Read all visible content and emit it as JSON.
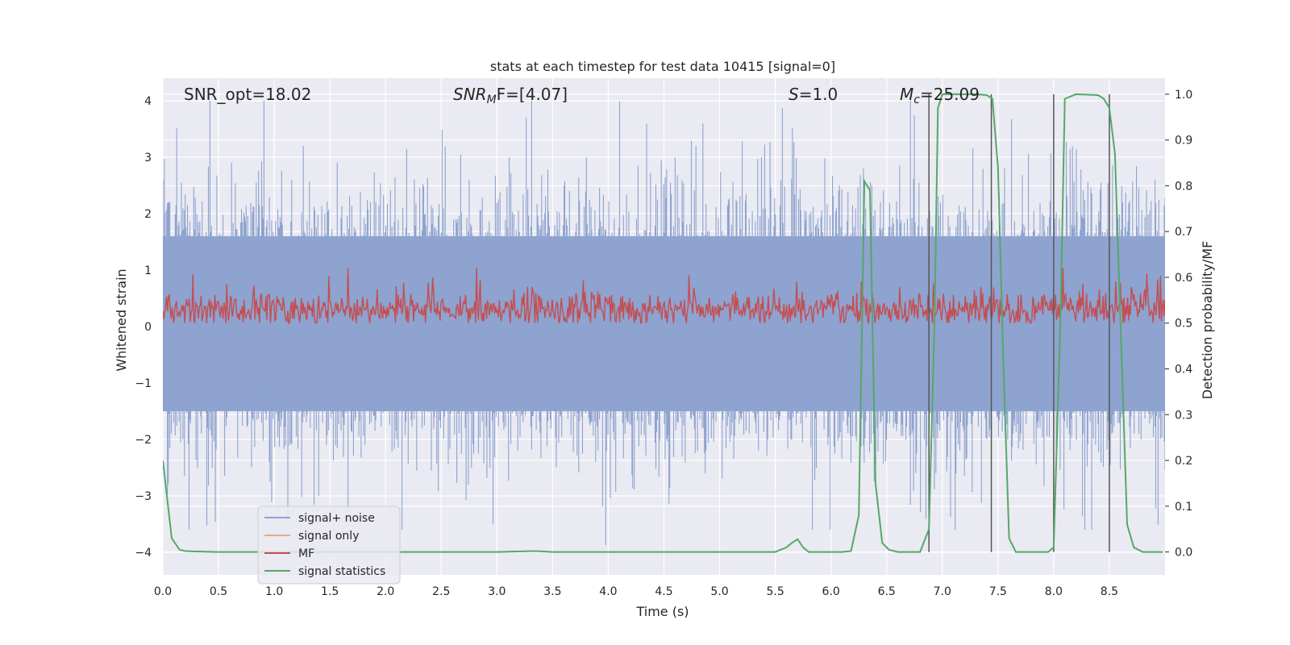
{
  "chart_data": {
    "type": "line",
    "title": "stats at each timestep for test data 10415 [signal=0]",
    "xlabel": "Time (s)",
    "ylabel_left": "Whitened strain",
    "ylabel_right": "Detection probability/MF",
    "xlim": [
      0,
      9.0
    ],
    "ylim_left": [
      -4.4,
      4.4
    ],
    "ylim_right": [
      -0.05,
      1.035
    ],
    "x_ticks": [
      "0.0",
      "0.5",
      "1.0",
      "1.5",
      "2.0",
      "2.5",
      "3.0",
      "3.5",
      "4.0",
      "4.5",
      "5.0",
      "5.5",
      "6.0",
      "6.5",
      "7.0",
      "7.5",
      "8.0",
      "8.5"
    ],
    "y_left_ticks": [
      "−4",
      "−3",
      "−2",
      "−1",
      "0",
      "1",
      "2",
      "3",
      "4"
    ],
    "y_right_ticks": [
      "0.0",
      "0.1",
      "0.2",
      "0.3",
      "0.4",
      "0.5",
      "0.6",
      "0.7",
      "0.8",
      "0.9",
      "1.0"
    ],
    "grid": true,
    "legend_position": "lower-left",
    "annotations": {
      "snr_opt": "SNR_opt=18.02",
      "snr_mf_sym": "SNR",
      "snr_mf_sub": "M",
      "snr_mf_rest": "F=[4.07]",
      "s_sym": "S",
      "s_rest": "=1.0",
      "mc_sym": "M",
      "mc_sub": "c",
      "mc_rest": "=25.09"
    },
    "vertical_lines_x": [
      6.88,
      7.44,
      8.0,
      8.5
    ],
    "series": [
      {
        "name": "signal+ noise",
        "color": "#8ea3cf",
        "axis": "left",
        "envelope_upper_typical": 1.6,
        "envelope_lower_typical": -1.5,
        "peak_max": 4.0,
        "peak_min": -3.6
      },
      {
        "name": "signal only",
        "color": "#e8a888",
        "axis": "left",
        "values": []
      },
      {
        "name": "MF",
        "color": "#c44e52",
        "axis": "right",
        "mean": 0.53,
        "min": 0.5,
        "max": 0.62
      },
      {
        "name": "signal statistics",
        "color": "#55a868",
        "axis": "right",
        "x": [
          0.0,
          0.08,
          0.15,
          0.2,
          0.3,
          0.5,
          1.0,
          2.0,
          3.0,
          3.35,
          3.5,
          4.0,
          5.0,
          5.5,
          5.6,
          5.65,
          5.7,
          5.75,
          5.8,
          5.9,
          6.1,
          6.18,
          6.25,
          6.3,
          6.35,
          6.4,
          6.46,
          6.52,
          6.6,
          6.8,
          6.88,
          6.93,
          6.96,
          7.0,
          7.1,
          7.2,
          7.3,
          7.4,
          7.45,
          7.5,
          7.55,
          7.6,
          7.66,
          7.75,
          7.95,
          8.0,
          8.06,
          8.1,
          8.2,
          8.4,
          8.45,
          8.5,
          8.55,
          8.6,
          8.66,
          8.72,
          8.8,
          8.9,
          8.98
        ],
        "values": [
          0.2,
          0.03,
          0.005,
          0.002,
          0.001,
          0.0,
          0.0,
          0.0,
          0.0,
          0.002,
          0.0,
          0.0,
          0.0,
          0.0,
          0.01,
          0.02,
          0.028,
          0.01,
          0.0,
          0.0,
          0.0,
          0.002,
          0.08,
          0.81,
          0.79,
          0.15,
          0.02,
          0.005,
          0.0,
          0.0,
          0.05,
          0.5,
          0.97,
          1.0,
          1.0,
          1.0,
          1.0,
          0.998,
          0.99,
          0.84,
          0.4,
          0.03,
          0.0,
          0.0,
          0.0,
          0.01,
          0.5,
          0.99,
          1.0,
          0.998,
          0.99,
          0.97,
          0.87,
          0.5,
          0.06,
          0.01,
          0.0,
          0.0,
          0.0
        ]
      }
    ]
  }
}
